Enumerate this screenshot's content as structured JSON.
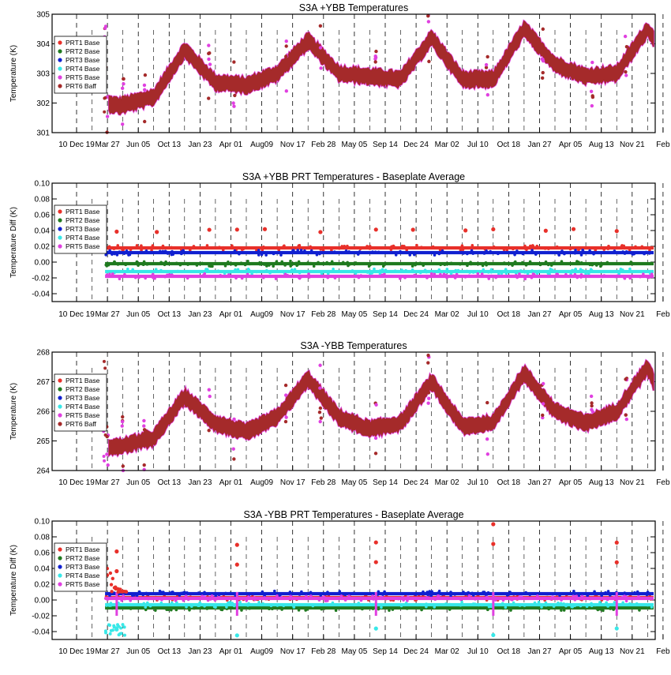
{
  "x_ticks": [
    "10 Dec 19",
    "Mar 27",
    "Jun 05",
    "Oct 13",
    "Jan 23",
    "Apr 01",
    "Aug09",
    "Nov 17",
    "Feb 28",
    "May 05",
    "Sep 14",
    "Dec 24",
    "Mar 02",
    "Jul 10",
    "Oct 18",
    "Jan 27",
    "Apr 05",
    "Aug 13",
    "Nov 21",
    "Feb"
  ],
  "colors": {
    "PRT1": "#e8302a",
    "PRT2": "#1f7a1f",
    "PRT3": "#1020d0",
    "PRT4": "#38e8e8",
    "PRT5": "#e040e0",
    "PRT6": "#a52a2a"
  },
  "chart_data": [
    {
      "type": "scatter",
      "title": "S3A +YBB Temperatures",
      "ylabel": "Temperature (K)",
      "ylim": [
        301,
        305
      ],
      "yticks": [
        "301",
        "302",
        "303",
        "304",
        "305"
      ],
      "grid": true,
      "legend": {
        "placement": "top-left",
        "entries": [
          "PRT1 Base",
          "PRT2 Base",
          "PRT3 Base",
          "PRT4 Base",
          "PRT5 Base",
          "PRT6 Baff"
        ]
      },
      "series": [
        {
          "name": "PRT6 Baff",
          "color": "PRT6",
          "x": [
            0,
            1.4,
            2.5,
            3.5,
            4.5,
            5.5,
            6.5,
            7.5,
            8.5,
            9.5,
            10.5,
            11.5,
            12.5,
            13.5,
            14.5,
            15.5,
            16.5,
            17.5,
            18.5,
            19
          ],
          "y": [
            302.2,
            301.9,
            302.2,
            303.8,
            302.7,
            302.6,
            303.0,
            304.1,
            303.0,
            302.9,
            302.8,
            304.2,
            302.8,
            302.8,
            304.5,
            303.3,
            302.9,
            303.0,
            304.5,
            303.6
          ]
        }
      ]
    },
    {
      "type": "scatter",
      "title": "S3A +YBB PRT Temperatures - Baseplate Average",
      "ylabel": "Temperature Diff (K)",
      "ylim": [
        -0.05,
        0.1
      ],
      "yticks": [
        "-0.04",
        "-0.02",
        "0.00",
        "0.02",
        "0.04",
        "0.06",
        "0.08",
        "0.10"
      ],
      "grid": true,
      "legend": {
        "placement": "top-left",
        "entries": [
          "PRT1 Base",
          "PRT2 Base",
          "PRT3 Base",
          "PRT4 Base",
          "PRT5 Base"
        ]
      },
      "series": [
        {
          "name": "PRT1 Base",
          "color": "PRT1",
          "level": 0.018
        },
        {
          "name": "PRT2 Base",
          "color": "PRT2",
          "level": -0.002
        },
        {
          "name": "PRT3 Base",
          "color": "PRT3",
          "level": 0.012
        },
        {
          "name": "PRT4 Base",
          "color": "PRT4",
          "level": -0.012
        },
        {
          "name": "PRT5 Base",
          "color": "PRT5",
          "level": -0.018
        }
      ]
    },
    {
      "type": "scatter",
      "title": "S3A -YBB Temperatures",
      "ylabel": "Temperature (K)",
      "ylim": [
        264,
        268
      ],
      "yticks": [
        "264",
        "265",
        "266",
        "267",
        "268"
      ],
      "grid": true,
      "legend": {
        "placement": "top-left",
        "entries": [
          "PRT1 Base",
          "PRT2 Base",
          "PRT3 Base",
          "PRT4 Base",
          "PRT5 Base",
          "PRT6 Baff"
        ]
      },
      "series": [
        {
          "name": "PRT6 Baff",
          "color": "PRT6",
          "x": [
            0,
            1.4,
            2.5,
            3.5,
            4.5,
            5.5,
            6.5,
            7.5,
            8.5,
            9.5,
            10.5,
            11.5,
            12.5,
            13.5,
            14.5,
            15.5,
            16.5,
            17.5,
            18.5,
            19
          ],
          "y": [
            264.9,
            264.8,
            265.1,
            266.5,
            265.6,
            265.3,
            265.8,
            267.1,
            265.8,
            265.4,
            265.6,
            267.0,
            265.5,
            265.6,
            267.3,
            266.0,
            265.6,
            266.0,
            267.5,
            266.2
          ]
        }
      ]
    },
    {
      "type": "scatter",
      "title": "S3A -YBB PRT Temperatures - Baseplate Average",
      "ylabel": "Temperature Diff (K)",
      "ylim": [
        -0.05,
        0.1
      ],
      "yticks": [
        "-0.04",
        "-0.02",
        "0.00",
        "0.02",
        "0.04",
        "0.06",
        "0.08",
        "0.10"
      ],
      "grid": true,
      "legend": {
        "placement": "top-left",
        "entries": [
          "PRT1 Base",
          "PRT2 Base",
          "PRT3 Base",
          "PRT4 Base",
          "PRT5 Base"
        ]
      },
      "series": [
        {
          "name": "PRT1 Base",
          "color": "PRT1",
          "level": 0.003
        },
        {
          "name": "PRT2 Base",
          "color": "PRT2",
          "level": -0.01
        },
        {
          "name": "PRT3 Base",
          "color": "PRT3",
          "level": 0.008
        },
        {
          "name": "PRT4 Base",
          "color": "PRT4",
          "level": -0.006
        },
        {
          "name": "PRT5 Base",
          "color": "PRT5",
          "level": 0.002
        }
      ]
    }
  ]
}
